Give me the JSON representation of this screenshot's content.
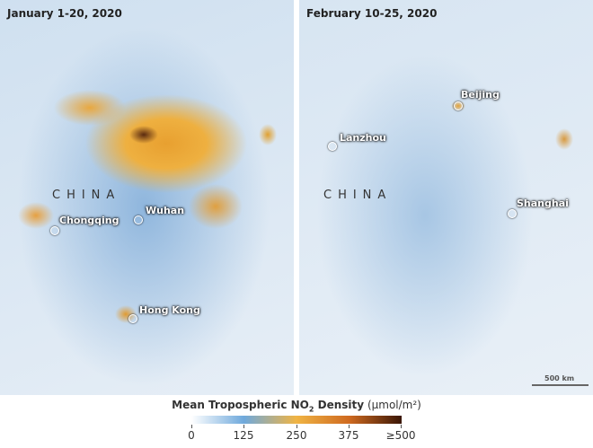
{
  "panels": [
    {
      "title": "January 1-20, 2020",
      "country": "CHINA",
      "cities": [
        "Chongqing",
        "Wuhan",
        "Hong Kong"
      ]
    },
    {
      "title": "February 10-25, 2020",
      "country": "CHINA",
      "cities": [
        "Beijing",
        "Lanzhou",
        "Shanghai"
      ],
      "scale_bar": "500 km"
    }
  ],
  "legend": {
    "title_main": "Mean Tropospheric NO",
    "subscript": "2",
    "title_rest": " Density",
    "unit": "(μmol/m²)",
    "ticks": [
      "0",
      "125",
      "250",
      "375",
      "≥500"
    ],
    "colors": [
      "#ffffff",
      "#6fa9dc",
      "#f0b444",
      "#cf6a20",
      "#3a1606"
    ]
  }
}
